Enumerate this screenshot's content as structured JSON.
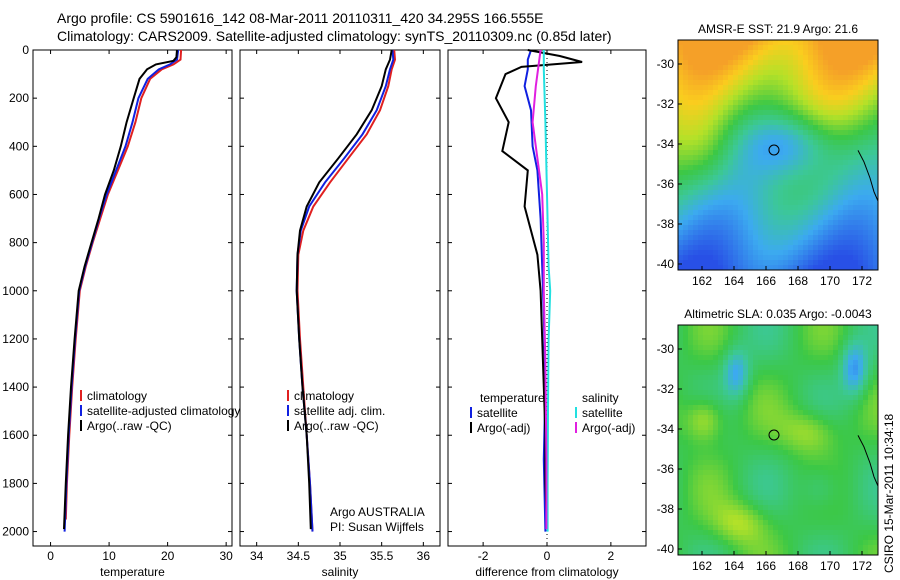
{
  "title_line1": "Argo profile: CS 5901616_142 08-Mar-2011 20110311_420 34.295S 166.555E",
  "title_line2": "Climatology: CARS2009. Satellite-adjusted climatology: synTS_20110309.nc (0.85d later)",
  "side_text": "CSIRO 15-Mar-2011 10:34:18",
  "colors": {
    "clim": "#e02020",
    "sat": "#1020e0",
    "argo": "#000000",
    "sal_sat": "#22e0e0",
    "sal_argo": "#e020e0"
  },
  "chart_data": [
    {
      "type": "line",
      "id": "temperature",
      "xlabel": "temperature",
      "ylabel": "",
      "xlim": [
        -3,
        31
      ],
      "ylim": [
        2060,
        0
      ],
      "y_reversed": true,
      "xticks": [
        0,
        10,
        20,
        30
      ],
      "yticks": [
        0,
        200,
        400,
        600,
        800,
        1000,
        1200,
        1400,
        1600,
        1800,
        2000
      ],
      "legend": [
        "climatology",
        "satellite-adjusted climatology",
        "Argo(..raw -QC)"
      ],
      "series": [
        {
          "name": "climatology",
          "color": "#e02020",
          "points": [
            [
              22.3,
              0
            ],
            [
              22.2,
              40
            ],
            [
              21,
              60
            ],
            [
              19,
              80
            ],
            [
              17,
              120
            ],
            [
              15.5,
              200
            ],
            [
              14.5,
              300
            ],
            [
              13.2,
              400
            ],
            [
              11.5,
              500
            ],
            [
              9.8,
              600
            ],
            [
              8.5,
              700
            ],
            [
              7.2,
              800
            ],
            [
              6,
              900
            ],
            [
              5,
              1000
            ],
            [
              4.3,
              1200
            ],
            [
              3.7,
              1400
            ],
            [
              3.2,
              1600
            ],
            [
              2.8,
              1800
            ],
            [
              2.6,
              1950
            ]
          ]
        },
        {
          "name": "satellite-adjusted climatology",
          "color": "#1020e0",
          "points": [
            [
              21.8,
              0
            ],
            [
              21.6,
              40
            ],
            [
              20.4,
              60
            ],
            [
              18.5,
              80
            ],
            [
              16.6,
              120
            ],
            [
              15,
              200
            ],
            [
              14,
              300
            ],
            [
              12.8,
              400
            ],
            [
              11.2,
              500
            ],
            [
              9.6,
              600
            ],
            [
              8.3,
              700
            ],
            [
              7.1,
              800
            ],
            [
              5.9,
              900
            ],
            [
              4.9,
              1000
            ],
            [
              4.2,
              1200
            ],
            [
              3.6,
              1400
            ],
            [
              3.1,
              1600
            ],
            [
              2.7,
              1800
            ],
            [
              2.4,
              2000
            ]
          ]
        },
        {
          "name": "Argo(..raw -QC)",
          "color": "#000000",
          "points": [
            [
              21.6,
              0
            ],
            [
              21.5,
              30
            ],
            [
              21,
              45
            ],
            [
              18,
              60
            ],
            [
              16.5,
              80
            ],
            [
              15.2,
              120
            ],
            [
              14.2,
              200
            ],
            [
              13,
              300
            ],
            [
              12,
              400
            ],
            [
              10.8,
              500
            ],
            [
              9.3,
              600
            ],
            [
              8.2,
              700
            ],
            [
              7,
              800
            ],
            [
              5.8,
              900
            ],
            [
              4.8,
              1000
            ],
            [
              4.1,
              1200
            ],
            [
              3.5,
              1400
            ],
            [
              3,
              1600
            ],
            [
              2.6,
              1800
            ],
            [
              2.3,
              1990
            ]
          ]
        }
      ]
    },
    {
      "type": "line",
      "id": "salinity",
      "xlabel": "salinity",
      "ylabel": "",
      "xlim": [
        33.8,
        36.2
      ],
      "ylim": [
        2060,
        0
      ],
      "y_reversed": true,
      "xticks": [
        34,
        34.5,
        35,
        35.5,
        36
      ],
      "yticks": [
        0,
        200,
        400,
        600,
        800,
        1000,
        1200,
        1400,
        1600,
        1800,
        2000
      ],
      "legend": [
        "climatology",
        "satellite adj. clim.",
        "Argo(..raw -QC)"
      ],
      "annotation": [
        "Argo AUSTRALIA",
        "PI: Susan Wijffels"
      ],
      "series": [
        {
          "name": "climatology",
          "color": "#e02020",
          "points": [
            [
              35.65,
              0
            ],
            [
              35.66,
              40
            ],
            [
              35.62,
              80
            ],
            [
              35.58,
              150
            ],
            [
              35.48,
              250
            ],
            [
              35.32,
              350
            ],
            [
              35.1,
              450
            ],
            [
              34.88,
              550
            ],
            [
              34.68,
              650
            ],
            [
              34.56,
              750
            ],
            [
              34.5,
              850
            ],
            [
              34.49,
              1000
            ],
            [
              34.52,
              1200
            ],
            [
              34.56,
              1400
            ],
            [
              34.6,
              1600
            ],
            [
              34.64,
              1800
            ],
            [
              34.67,
              2000
            ]
          ]
        },
        {
          "name": "satellite adj. clim.",
          "color": "#1020e0",
          "points": [
            [
              35.63,
              0
            ],
            [
              35.64,
              40
            ],
            [
              35.6,
              80
            ],
            [
              35.55,
              150
            ],
            [
              35.44,
              250
            ],
            [
              35.27,
              350
            ],
            [
              35.05,
              450
            ],
            [
              34.82,
              550
            ],
            [
              34.63,
              650
            ],
            [
              34.53,
              750
            ],
            [
              34.49,
              850
            ],
            [
              34.48,
              1000
            ],
            [
              34.51,
              1200
            ],
            [
              34.55,
              1400
            ],
            [
              34.6,
              1600
            ],
            [
              34.64,
              1800
            ],
            [
              34.67,
              2000
            ]
          ]
        },
        {
          "name": "Argo(..raw -QC)",
          "color": "#000000",
          "points": [
            [
              35.62,
              0
            ],
            [
              35.6,
              40
            ],
            [
              35.55,
              80
            ],
            [
              35.5,
              150
            ],
            [
              35.38,
              250
            ],
            [
              35.2,
              350
            ],
            [
              34.98,
              450
            ],
            [
              34.75,
              550
            ],
            [
              34.6,
              650
            ],
            [
              34.52,
              750
            ],
            [
              34.49,
              850
            ],
            [
              34.48,
              1000
            ],
            [
              34.51,
              1200
            ],
            [
              34.55,
              1400
            ],
            [
              34.6,
              1600
            ],
            [
              34.63,
              1800
            ],
            [
              34.65,
              1990
            ]
          ]
        }
      ]
    },
    {
      "type": "line",
      "id": "difference",
      "xlabel": "difference from climatology",
      "ylabel": "",
      "xlim": [
        -3.1,
        3.1
      ],
      "ylim": [
        2060,
        0
      ],
      "y_reversed": true,
      "xticks": [
        -2,
        0,
        2
      ],
      "yticks": [
        0,
        200,
        400,
        600,
        800,
        1000,
        1200,
        1400,
        1600,
        1800,
        2000
      ],
      "legend_left_title": "temperature",
      "legend_right_title": "salinity",
      "legend": [
        "satellite",
        "Argo(-adj)",
        "satellite",
        "Argo(-adj)"
      ],
      "series": [
        {
          "name": "temperature satellite",
          "color": "#1020e0",
          "points": [
            [
              -0.5,
              0
            ],
            [
              -0.6,
              40
            ],
            [
              -0.6,
              80
            ],
            [
              -0.7,
              150
            ],
            [
              -0.5,
              250
            ],
            [
              -0.45,
              400
            ],
            [
              -0.3,
              500
            ],
            [
              -0.2,
              700
            ],
            [
              -0.15,
              900
            ],
            [
              -0.1,
              1100
            ],
            [
              -0.05,
              1400
            ],
            [
              -0.1,
              1700
            ],
            [
              -0.05,
              2000
            ]
          ]
        },
        {
          "name": "temperature Argo(-adj)",
          "color": "#000000",
          "points": [
            [
              -0.6,
              0
            ],
            [
              0.4,
              25
            ],
            [
              1.1,
              50
            ],
            [
              -0.8,
              70
            ],
            [
              -1.3,
              100
            ],
            [
              -1.6,
              200
            ],
            [
              -1.2,
              300
            ],
            [
              -1.4,
              420
            ],
            [
              -0.6,
              500
            ],
            [
              -0.7,
              650
            ],
            [
              -0.3,
              850
            ],
            [
              -0.2,
              1000
            ],
            [
              -0.15,
              1200
            ],
            [
              -0.1,
              1400
            ],
            [
              -0.05,
              1600
            ],
            [
              -0.05,
              1800
            ],
            [
              0.0,
              1980
            ]
          ]
        },
        {
          "name": "salinity satellite",
          "color": "#22e0e0",
          "points": [
            [
              -0.1,
              0
            ],
            [
              -0.1,
              80
            ],
            [
              -0.05,
              300
            ],
            [
              0,
              600
            ],
            [
              0.05,
              900
            ],
            [
              0.1,
              1000
            ],
            [
              0.05,
              1200
            ],
            [
              0.03,
              1500
            ],
            [
              0.02,
              1800
            ],
            [
              0.02,
              2000
            ]
          ]
        },
        {
          "name": "salinity Argo(-adj)",
          "color": "#e020e0",
          "points": [
            [
              -0.2,
              0
            ],
            [
              -0.25,
              50
            ],
            [
              -0.35,
              150
            ],
            [
              -0.45,
              300
            ],
            [
              -0.3,
              450
            ],
            [
              -0.15,
              600
            ],
            [
              -0.1,
              800
            ],
            [
              -0.1,
              1000
            ],
            [
              -0.05,
              1300
            ],
            [
              -0.02,
              1700
            ],
            [
              -0.02,
              1990
            ]
          ]
        }
      ]
    },
    {
      "type": "heatmap",
      "id": "sst-map",
      "title": "AMSR-E SST: 21.9 Argo: 21.6",
      "xlim": [
        160.5,
        173
      ],
      "ylim": [
        -40.3,
        -28.8
      ],
      "xticks": [
        162,
        164,
        166,
        168,
        170,
        172
      ],
      "yticks": [
        -30,
        -32,
        -34,
        -36,
        -38,
        -40
      ],
      "marker": {
        "lon": 166.5,
        "lat": -34.3
      },
      "field": "sst"
    },
    {
      "type": "heatmap",
      "id": "sla-map",
      "title": "Altimetric SLA: 0.035 Argo: -0.0043",
      "xlim": [
        160.5,
        173
      ],
      "ylim": [
        -40.3,
        -28.8
      ],
      "xticks": [
        162,
        164,
        166,
        168,
        170,
        172
      ],
      "yticks": [
        -30,
        -32,
        -34,
        -36,
        -38,
        -40
      ],
      "marker": {
        "lon": 166.5,
        "lat": -34.3
      },
      "field": "sla"
    }
  ]
}
